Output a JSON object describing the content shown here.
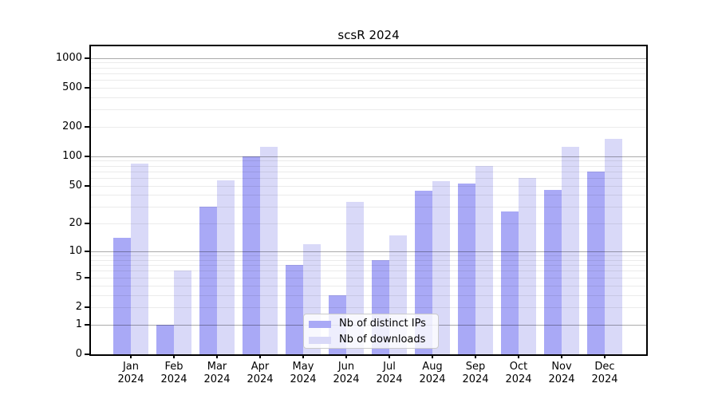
{
  "title": "scsR 2024",
  "chart_data": {
    "type": "bar",
    "title": "scsR 2024",
    "categories": [
      "Jan",
      "Feb",
      "Mar",
      "Apr",
      "May",
      "Jun",
      "Jul",
      "Aug",
      "Sep",
      "Oct",
      "Nov",
      "Dec"
    ],
    "year": "2024",
    "series": [
      {
        "name": "Nb of distinct IPs",
        "color": "#a9a9f6",
        "values": [
          14,
          1,
          30,
          100,
          7,
          3,
          8,
          44,
          53,
          27,
          45,
          70
        ]
      },
      {
        "name": "Nb of downloads",
        "color": "#d9d9f8",
        "values": [
          85,
          6,
          57,
          125,
          12,
          34,
          15,
          56,
          80,
          60,
          124,
          150
        ]
      }
    ],
    "y_ticks": [
      0,
      1,
      2,
      5,
      10,
      20,
      50,
      100,
      200,
      500,
      1000
    ],
    "y_scale": "log1p",
    "ylim": [
      0,
      1310
    ],
    "grid": true,
    "legend_position": "lower center",
    "colors": {
      "major_grid": "#adadad",
      "minor_grid": "#ebebeb",
      "axis": "#000000",
      "background": "#ffffff"
    }
  }
}
